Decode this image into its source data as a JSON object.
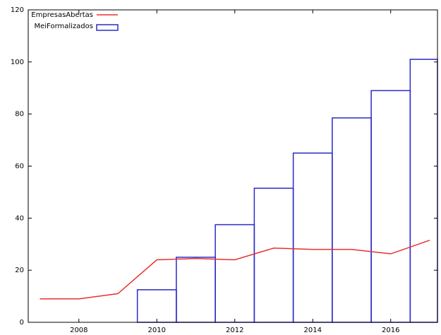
{
  "chart_data": {
    "type": "bar",
    "xlim": [
      2006.7,
      2017.2
    ],
    "ylim": [
      0,
      120
    ],
    "x_ticks": [
      2008,
      2010,
      2012,
      2014,
      2016
    ],
    "y_ticks": [
      0,
      20,
      40,
      60,
      80,
      100,
      120
    ],
    "grid": false,
    "legend_position": "top-left",
    "series": [
      {
        "name": "EmpresasAbertas",
        "type": "line",
        "color": "#e8302e",
        "x": [
          2007,
          2008,
          2009,
          2010,
          2011,
          2012,
          2013,
          2014,
          2015,
          2016,
          2017
        ],
        "values": [
          9,
          9,
          11,
          24,
          24.5,
          24,
          28.5,
          28,
          28,
          26.3,
          31.5
        ]
      },
      {
        "name": "MeiFormalizados",
        "type": "bar",
        "color": "#2a2ac8",
        "x": [
          2010,
          2011,
          2012,
          2013,
          2014,
          2015,
          2016,
          2017
        ],
        "values": [
          12.5,
          25,
          37.5,
          51.5,
          65,
          78.5,
          89,
          101
        ]
      }
    ]
  }
}
